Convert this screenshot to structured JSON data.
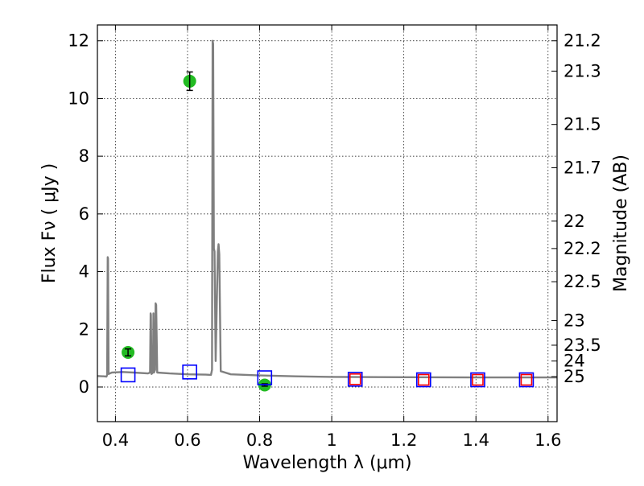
{
  "chart_data": {
    "type": "scatter",
    "xlabel": "Wavelength  λ (μm)",
    "ylabel": "Flux  Fν  ( μJy )",
    "ylabel_right": "Magnitude (AB)",
    "xlim": [
      0.35,
      1.625
    ],
    "ylim": [
      -1.2,
      12.55
    ],
    "grid": true,
    "x_ticks": [
      0.4,
      0.6,
      0.8,
      1.0,
      1.2,
      1.4,
      1.6
    ],
    "x_tick_labels": [
      "0.4",
      "0.6",
      "0.8",
      "1",
      "1.2",
      "1.4",
      "1.6"
    ],
    "y_ticks": [
      0,
      2,
      4,
      6,
      8,
      10,
      12
    ],
    "y_tick_labels": [
      "0",
      "2",
      "4",
      "6",
      "8",
      "10",
      "12"
    ],
    "right_ticks": [
      {
        "label": "21.2",
        "flux": 12.0
      },
      {
        "label": "21.3",
        "flux": 10.95
      },
      {
        "label": "21.5",
        "flux": 9.1
      },
      {
        "label": "21.7",
        "flux": 7.6
      },
      {
        "label": "22",
        "flux": 5.75
      },
      {
        "label": "22.2",
        "flux": 4.8
      },
      {
        "label": "22.5",
        "flux": 3.65
      },
      {
        "label": "23",
        "flux": 2.3
      },
      {
        "label": "23.5",
        "flux": 1.45
      },
      {
        "label": "24",
        "flux": 0.9
      },
      {
        "label": "25",
        "flux": 0.36
      }
    ],
    "series": [
      {
        "marker": "circle",
        "color": "#22bb22",
        "points": [
          {
            "x": 0.435,
            "y": 1.2,
            "yerr": 0.12
          },
          {
            "x": 0.606,
            "y": 10.6,
            "yerr": 0.32
          },
          {
            "x": 0.814,
            "y": 0.07,
            "yerr": 0.04
          }
        ]
      },
      {
        "marker": "square",
        "color": "#0000ff",
        "points": [
          {
            "x": 0.435,
            "y": 0.42
          },
          {
            "x": 0.606,
            "y": 0.52
          },
          {
            "x": 0.814,
            "y": 0.32
          },
          {
            "x": 1.065,
            "y": 0.27
          },
          {
            "x": 1.255,
            "y": 0.25
          },
          {
            "x": 1.405,
            "y": 0.25
          },
          {
            "x": 1.54,
            "y": 0.25
          }
        ]
      },
      {
        "marker": "square",
        "color": "#ff0000",
        "points": [
          {
            "x": 1.065,
            "y": 0.27
          },
          {
            "x": 1.255,
            "y": 0.25
          },
          {
            "x": 1.405,
            "y": 0.25
          },
          {
            "x": 1.54,
            "y": 0.25
          }
        ]
      },
      {
        "type": "line",
        "color": "#808080",
        "points": [
          [
            0.35,
            0.38
          ],
          [
            0.368,
            0.37
          ],
          [
            0.375,
            0.36
          ],
          [
            0.377,
            0.42
          ],
          [
            0.3785,
            4.5
          ],
          [
            0.3795,
            4.45
          ],
          [
            0.381,
            0.45
          ],
          [
            0.39,
            0.5
          ],
          [
            0.42,
            0.52
          ],
          [
            0.45,
            0.5
          ],
          [
            0.49,
            0.47
          ],
          [
            0.496,
            0.5
          ],
          [
            0.4975,
            2.55
          ],
          [
            0.4985,
            2.5
          ],
          [
            0.5,
            0.45
          ],
          [
            0.504,
            0.5
          ],
          [
            0.5055,
            2.55
          ],
          [
            0.507,
            0.5
          ],
          [
            0.51,
            0.6
          ],
          [
            0.5115,
            2.9
          ],
          [
            0.513,
            2.85
          ],
          [
            0.516,
            0.5
          ],
          [
            0.55,
            0.47
          ],
          [
            0.6,
            0.44
          ],
          [
            0.65,
            0.43
          ],
          [
            0.665,
            0.42
          ],
          [
            0.668,
            0.6
          ],
          [
            0.6695,
            12.0
          ],
          [
            0.671,
            11.9
          ],
          [
            0.673,
            4.8
          ],
          [
            0.675,
            4.7
          ],
          [
            0.678,
            0.9
          ],
          [
            0.684,
            4.7
          ],
          [
            0.686,
            4.95
          ],
          [
            0.688,
            4.6
          ],
          [
            0.692,
            0.55
          ],
          [
            0.72,
            0.44
          ],
          [
            0.8,
            0.4
          ],
          [
            0.9,
            0.37
          ],
          [
            1.0,
            0.35
          ],
          [
            1.2,
            0.34
          ],
          [
            1.4,
            0.33
          ],
          [
            1.625,
            0.33
          ]
        ]
      }
    ]
  }
}
